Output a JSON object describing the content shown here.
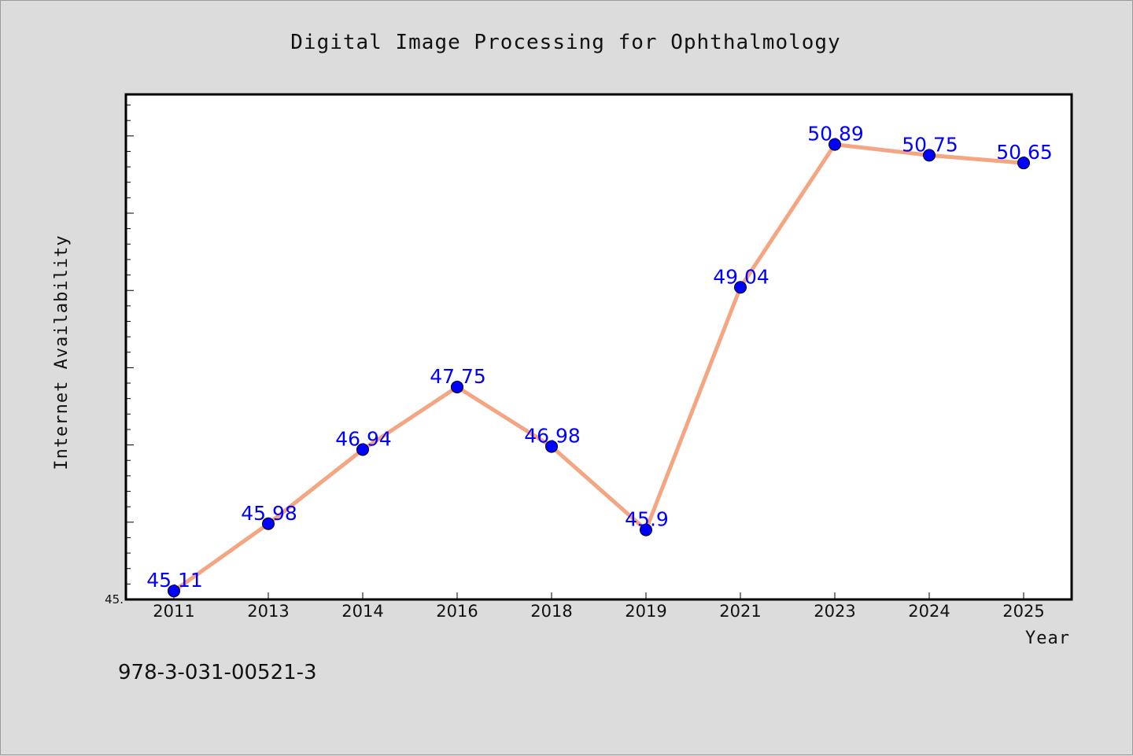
{
  "footer": {
    "text": "978-3-031-00521-3"
  },
  "colors": {
    "background": "#dcdcdc",
    "plot_background": "#ffffff",
    "line": "#f4a582",
    "marker": "#0000ff",
    "label": "#0000ff"
  },
  "chart_data": {
    "type": "line",
    "title": "Digital Image Processing for Ophthalmology",
    "xlabel": "Year",
    "ylabel": "Internet Availability",
    "categories": [
      "2011",
      "2013",
      "2014",
      "2016",
      "2018",
      "2019",
      "2021",
      "2023",
      "2024",
      "2025"
    ],
    "series": [
      {
        "values": [
          45.11,
          45.98,
          46.94,
          47.75,
          46.98,
          45.9,
          49.04,
          50.89,
          50.75,
          50.65
        ],
        "value_labels": [
          "45.11",
          "45.98",
          "46.94",
          "47.75",
          "46.98",
          "45.9",
          "49.04",
          "50.89",
          "50.75",
          "50.65"
        ]
      }
    ],
    "y_tick_labels": [
      {
        "value": 45.0,
        "label": "45."
      }
    ],
    "ylim": [
      45.0,
      51.5
    ],
    "grid": false,
    "legend": "none"
  }
}
